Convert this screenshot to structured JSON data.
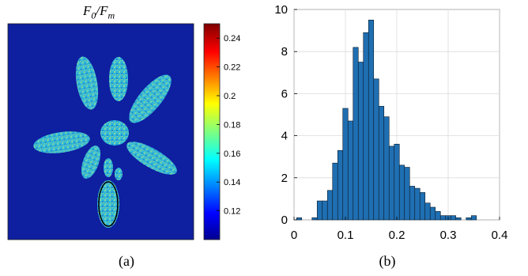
{
  "panels": {
    "a_label": "(a)",
    "b_label": "(b)"
  },
  "chart_data": [
    {
      "type": "heatmap",
      "title": "F_0/F_m",
      "title_parts": {
        "main": "F",
        "sub1": "0",
        "slash": "/",
        "main2": "F",
        "sub2": "m"
      },
      "colormap": "jet",
      "colorbar_ticks": [
        "0.12",
        "0.14",
        "0.16",
        "0.18",
        "0.2",
        "0.22",
        "0.24"
      ],
      "colorbar_range": [
        0.1,
        0.25
      ],
      "background_color": "#0e1fa0",
      "annotation": "black ellipse around lower leaf"
    },
    {
      "type": "bar",
      "title": "",
      "xlabel": "",
      "ylabel": "",
      "xlim": [
        0,
        0.4
      ],
      "ylim": [
        0,
        10
      ],
      "grid": true,
      "x_ticks": [
        "0",
        "0.1",
        "0.2",
        "0.3",
        "0.4"
      ],
      "y_ticks": [
        "0",
        "2",
        "4",
        "6",
        "8",
        "10"
      ],
      "bar_color": "#1f6fb2",
      "bins_x": [
        0.01,
        0.02,
        0.03,
        0.04,
        0.05,
        0.06,
        0.07,
        0.08,
        0.09,
        0.1,
        0.11,
        0.12,
        0.13,
        0.14,
        0.15,
        0.16,
        0.17,
        0.18,
        0.19,
        0.2,
        0.21,
        0.22,
        0.23,
        0.24,
        0.25,
        0.26,
        0.27,
        0.28,
        0.29,
        0.3,
        0.31,
        0.32,
        0.33,
        0.34,
        0.35,
        0.36,
        0.37,
        0.38,
        0.39
      ],
      "values": [
        0.1,
        0,
        0,
        0.1,
        0.9,
        0.9,
        1.4,
        2.7,
        3.3,
        5.3,
        4.7,
        8.2,
        7.5,
        8.9,
        9.5,
        6.7,
        5.4,
        4.9,
        3.5,
        3.6,
        2.6,
        2.5,
        1.6,
        1.5,
        1.3,
        0.8,
        0.6,
        0.4,
        0.2,
        0.2,
        0.2,
        0.1,
        0,
        0.1,
        0.2,
        0,
        0,
        0,
        0
      ]
    }
  ]
}
